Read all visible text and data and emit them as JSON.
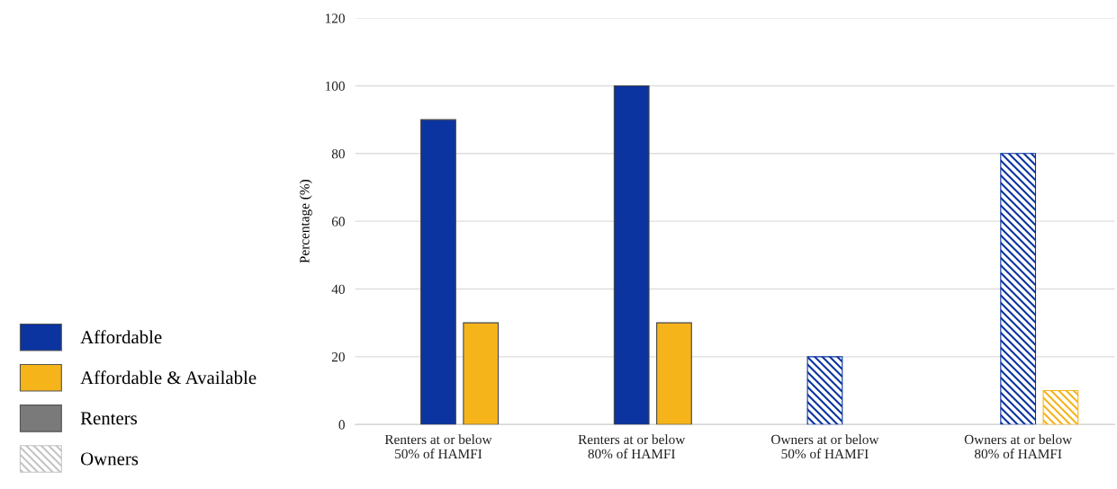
{
  "chart_data": {
    "type": "bar",
    "ylabel": "Percentage (%)",
    "categories": [
      "Renters at or below\n50% of HAMFI",
      "Renters at or below\n80% of HAMFI",
      "Owners at or below\n50% of HAMFI",
      "Owners at or below\n80% of HAMFI"
    ],
    "series": [
      {
        "name": "Affordable",
        "color": "#0b34a0",
        "values": [
          90,
          100,
          null,
          null
        ],
        "line_style": "solid"
      },
      {
        "name": "Affordable & Available",
        "color": "#f6b41b",
        "values": [
          30,
          30,
          null,
          null
        ],
        "line_style": "solid"
      },
      {
        "name": "Renters",
        "color": "#7a7a7a",
        "values": [
          null,
          null,
          null,
          null
        ],
        "line_style": "solid"
      },
      {
        "name": "Owners",
        "color": "#c4c4c4",
        "values": [
          null,
          null,
          null,
          null
        ],
        "line_style": "dashed"
      },
      {
        "color": "#0b34a0",
        "values": [
          null,
          null,
          20,
          80
        ],
        "line_style": "dashed"
      },
      {
        "color": "#f6b41b",
        "values": [
          null,
          null,
          null,
          10
        ],
        "line_style": "dashed"
      }
    ],
    "ylim": [
      0,
      120
    ],
    "yticks": [
      0,
      20,
      40,
      60,
      80,
      100,
      120
    ],
    "grid": "y",
    "legend": "left"
  }
}
